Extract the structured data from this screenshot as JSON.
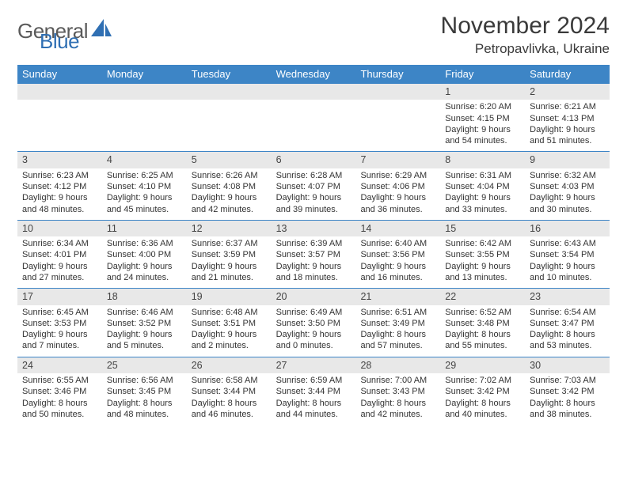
{
  "colors": {
    "header_bg": "#3d85c6",
    "header_text": "#ffffff",
    "daynum_bg": "#e8e8e8",
    "border": "#3d85c6",
    "body_text": "#333333",
    "title_text": "#3a3a3a",
    "logo_gray": "#5a5a5a",
    "logo_blue": "#2f6fb3"
  },
  "logo": {
    "text1": "General",
    "text2": "Blue"
  },
  "title": "November 2024",
  "location": "Petropavlivka, Ukraine",
  "weekdays": [
    "Sunday",
    "Monday",
    "Tuesday",
    "Wednesday",
    "Thursday",
    "Friday",
    "Saturday"
  ],
  "weeks": [
    [
      {
        "n": "",
        "sr": "",
        "ss": "",
        "dl": ""
      },
      {
        "n": "",
        "sr": "",
        "ss": "",
        "dl": ""
      },
      {
        "n": "",
        "sr": "",
        "ss": "",
        "dl": ""
      },
      {
        "n": "",
        "sr": "",
        "ss": "",
        "dl": ""
      },
      {
        "n": "",
        "sr": "",
        "ss": "",
        "dl": ""
      },
      {
        "n": "1",
        "sr": "Sunrise: 6:20 AM",
        "ss": "Sunset: 4:15 PM",
        "dl": "Daylight: 9 hours and 54 minutes."
      },
      {
        "n": "2",
        "sr": "Sunrise: 6:21 AM",
        "ss": "Sunset: 4:13 PM",
        "dl": "Daylight: 9 hours and 51 minutes."
      }
    ],
    [
      {
        "n": "3",
        "sr": "Sunrise: 6:23 AM",
        "ss": "Sunset: 4:12 PM",
        "dl": "Daylight: 9 hours and 48 minutes."
      },
      {
        "n": "4",
        "sr": "Sunrise: 6:25 AM",
        "ss": "Sunset: 4:10 PM",
        "dl": "Daylight: 9 hours and 45 minutes."
      },
      {
        "n": "5",
        "sr": "Sunrise: 6:26 AM",
        "ss": "Sunset: 4:08 PM",
        "dl": "Daylight: 9 hours and 42 minutes."
      },
      {
        "n": "6",
        "sr": "Sunrise: 6:28 AM",
        "ss": "Sunset: 4:07 PM",
        "dl": "Daylight: 9 hours and 39 minutes."
      },
      {
        "n": "7",
        "sr": "Sunrise: 6:29 AM",
        "ss": "Sunset: 4:06 PM",
        "dl": "Daylight: 9 hours and 36 minutes."
      },
      {
        "n": "8",
        "sr": "Sunrise: 6:31 AM",
        "ss": "Sunset: 4:04 PM",
        "dl": "Daylight: 9 hours and 33 minutes."
      },
      {
        "n": "9",
        "sr": "Sunrise: 6:32 AM",
        "ss": "Sunset: 4:03 PM",
        "dl": "Daylight: 9 hours and 30 minutes."
      }
    ],
    [
      {
        "n": "10",
        "sr": "Sunrise: 6:34 AM",
        "ss": "Sunset: 4:01 PM",
        "dl": "Daylight: 9 hours and 27 minutes."
      },
      {
        "n": "11",
        "sr": "Sunrise: 6:36 AM",
        "ss": "Sunset: 4:00 PM",
        "dl": "Daylight: 9 hours and 24 minutes."
      },
      {
        "n": "12",
        "sr": "Sunrise: 6:37 AM",
        "ss": "Sunset: 3:59 PM",
        "dl": "Daylight: 9 hours and 21 minutes."
      },
      {
        "n": "13",
        "sr": "Sunrise: 6:39 AM",
        "ss": "Sunset: 3:57 PM",
        "dl": "Daylight: 9 hours and 18 minutes."
      },
      {
        "n": "14",
        "sr": "Sunrise: 6:40 AM",
        "ss": "Sunset: 3:56 PM",
        "dl": "Daylight: 9 hours and 16 minutes."
      },
      {
        "n": "15",
        "sr": "Sunrise: 6:42 AM",
        "ss": "Sunset: 3:55 PM",
        "dl": "Daylight: 9 hours and 13 minutes."
      },
      {
        "n": "16",
        "sr": "Sunrise: 6:43 AM",
        "ss": "Sunset: 3:54 PM",
        "dl": "Daylight: 9 hours and 10 minutes."
      }
    ],
    [
      {
        "n": "17",
        "sr": "Sunrise: 6:45 AM",
        "ss": "Sunset: 3:53 PM",
        "dl": "Daylight: 9 hours and 7 minutes."
      },
      {
        "n": "18",
        "sr": "Sunrise: 6:46 AM",
        "ss": "Sunset: 3:52 PM",
        "dl": "Daylight: 9 hours and 5 minutes."
      },
      {
        "n": "19",
        "sr": "Sunrise: 6:48 AM",
        "ss": "Sunset: 3:51 PM",
        "dl": "Daylight: 9 hours and 2 minutes."
      },
      {
        "n": "20",
        "sr": "Sunrise: 6:49 AM",
        "ss": "Sunset: 3:50 PM",
        "dl": "Daylight: 9 hours and 0 minutes."
      },
      {
        "n": "21",
        "sr": "Sunrise: 6:51 AM",
        "ss": "Sunset: 3:49 PM",
        "dl": "Daylight: 8 hours and 57 minutes."
      },
      {
        "n": "22",
        "sr": "Sunrise: 6:52 AM",
        "ss": "Sunset: 3:48 PM",
        "dl": "Daylight: 8 hours and 55 minutes."
      },
      {
        "n": "23",
        "sr": "Sunrise: 6:54 AM",
        "ss": "Sunset: 3:47 PM",
        "dl": "Daylight: 8 hours and 53 minutes."
      }
    ],
    [
      {
        "n": "24",
        "sr": "Sunrise: 6:55 AM",
        "ss": "Sunset: 3:46 PM",
        "dl": "Daylight: 8 hours and 50 minutes."
      },
      {
        "n": "25",
        "sr": "Sunrise: 6:56 AM",
        "ss": "Sunset: 3:45 PM",
        "dl": "Daylight: 8 hours and 48 minutes."
      },
      {
        "n": "26",
        "sr": "Sunrise: 6:58 AM",
        "ss": "Sunset: 3:44 PM",
        "dl": "Daylight: 8 hours and 46 minutes."
      },
      {
        "n": "27",
        "sr": "Sunrise: 6:59 AM",
        "ss": "Sunset: 3:44 PM",
        "dl": "Daylight: 8 hours and 44 minutes."
      },
      {
        "n": "28",
        "sr": "Sunrise: 7:00 AM",
        "ss": "Sunset: 3:43 PM",
        "dl": "Daylight: 8 hours and 42 minutes."
      },
      {
        "n": "29",
        "sr": "Sunrise: 7:02 AM",
        "ss": "Sunset: 3:42 PM",
        "dl": "Daylight: 8 hours and 40 minutes."
      },
      {
        "n": "30",
        "sr": "Sunrise: 7:03 AM",
        "ss": "Sunset: 3:42 PM",
        "dl": "Daylight: 8 hours and 38 minutes."
      }
    ]
  ]
}
